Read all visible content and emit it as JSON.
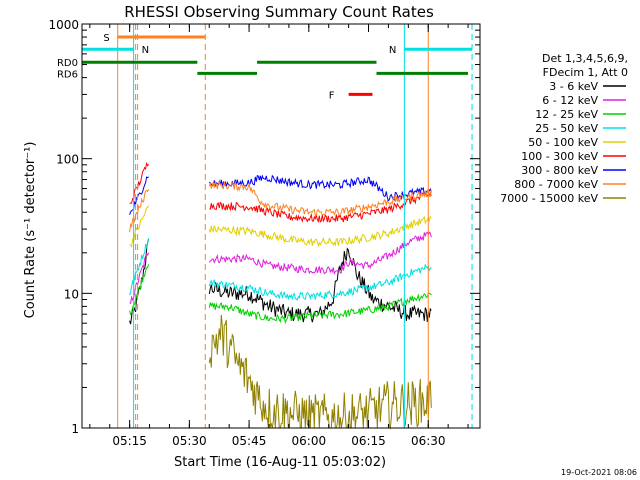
{
  "chart_data": {
    "type": "line",
    "title": "RHESSI Observing Summary Count Rates",
    "xlabel": "Start Time (16-Aug-11 05:03:02)",
    "ylabel": "Count Rate (s⁻¹ detector⁻¹)",
    "y_scale": "log",
    "ylim": [
      1,
      1000
    ],
    "xlim": [
      "05:03:02",
      "06:43:00"
    ],
    "x_ticks": [
      "05:15",
      "05:30",
      "05:45",
      "06:00",
      "06:15",
      "06:30"
    ],
    "y_ticks": [
      "1",
      "10",
      "100",
      "1000"
    ],
    "legend_header": [
      "Det 1,3,4,5,6,9,",
      "FDecim 1, Att 0"
    ],
    "legend_position": "right",
    "timestamp": "19-Oct-2021 08:06",
    "series": [
      {
        "name": "3 - 6 keV",
        "color": "#000000",
        "segments": [
          {
            "t": [
              "05:15:00",
              "05:16:00",
              "05:17:00",
              "05:18:00",
              "05:19:00",
              "05:20:00"
            ],
            "v": [
              6,
              7,
              9,
              12,
              18,
              25
            ]
          },
          {
            "t": [
              "05:35:00",
              "05:40:00",
              "05:45:00",
              "05:50:00",
              "05:55:00",
              "06:00:00",
              "06:03:00",
              "06:06:00",
              "06:08:00",
              "06:10:00",
              "06:12:00",
              "06:16:00",
              "06:20:00",
              "06:25:00",
              "06:31:00"
            ],
            "v": [
              11,
              10,
              10,
              8,
              7,
              7,
              7,
              9,
              16,
              22,
              14,
              9,
              8,
              7,
              7
            ]
          }
        ]
      },
      {
        "name": "6 - 12 keV",
        "color": "#e020e0",
        "segments": [
          {
            "t": [
              "05:15:00",
              "05:17:00",
              "05:19:00",
              "05:20:00"
            ],
            "v": [
              8,
              12,
              18,
              22
            ]
          },
          {
            "t": [
              "05:35:00",
              "05:45:00",
              "05:50:00",
              "06:00:00",
              "06:08:00",
              "06:10:00",
              "06:15:00",
              "06:20:00",
              "06:25:00",
              "06:31:00"
            ],
            "v": [
              18,
              18,
              16,
              15,
              15,
              17,
              16,
              19,
              24,
              28
            ]
          }
        ]
      },
      {
        "name": "12 - 25 keV",
        "color": "#00d000",
        "segments": [
          {
            "t": [
              "05:15:00",
              "05:17:00",
              "05:19:00",
              "05:20:00"
            ],
            "v": [
              7,
              10,
              15,
              18
            ]
          },
          {
            "t": [
              "05:35:00",
              "05:40:00",
              "05:45:00",
              "05:50:00",
              "05:55:00",
              "06:00:00",
              "06:08:00",
              "06:15:00",
              "06:20:00",
              "06:25:00",
              "06:31:00"
            ],
            "v": [
              8,
              8,
              7,
              6.5,
              6.5,
              6.8,
              7,
              7.5,
              8,
              9,
              10
            ]
          }
        ]
      },
      {
        "name": "25 - 50 keV",
        "color": "#00e0e0",
        "segments": [
          {
            "t": [
              "05:15:00",
              "05:17:00",
              "05:19:00",
              "05:20:00"
            ],
            "v": [
              10,
              15,
              22,
              26
            ]
          },
          {
            "t": [
              "05:35:00",
              "05:45:00",
              "05:50:00",
              "05:55:00",
              "06:00:00",
              "06:08:00",
              "06:15:00",
              "06:20:00",
              "06:25:00",
              "06:31:00"
            ],
            "v": [
              12,
              11,
              10,
              9.5,
              9.5,
              10,
              11,
              12,
              14,
              16
            ]
          }
        ]
      },
      {
        "name": "50 - 100 keV",
        "color": "#e0d000",
        "segments": [
          {
            "t": [
              "05:15:00",
              "05:17:00",
              "05:19:00",
              "05:20:00"
            ],
            "v": [
              22,
              30,
              40,
              46
            ]
          },
          {
            "t": [
              "05:35:00",
              "05:45:00",
              "05:50:00",
              "05:55:00",
              "06:00:00",
              "06:08:00",
              "06:15:00",
              "06:20:00",
              "06:25:00",
              "06:31:00"
            ],
            "v": [
              30,
              29,
              27,
              25,
              24,
              24,
              26,
              28,
              32,
              36
            ]
          }
        ]
      },
      {
        "name": "100 - 300 keV",
        "color": "#ff0000",
        "segments": [
          {
            "t": [
              "05:15:00",
              "05:17:00",
              "05:19:00",
              "05:20:00"
            ],
            "v": [
              45,
              62,
              85,
              100
            ]
          },
          {
            "t": [
              "05:35:00",
              "05:45:00",
              "05:50:00",
              "05:55:00",
              "06:00:00",
              "06:08:00",
              "06:15:00",
              "06:20:00",
              "06:25:00",
              "06:31:00"
            ],
            "v": [
              45,
              44,
              40,
              37,
              36,
              36,
              39,
              42,
              48,
              55
            ]
          }
        ]
      },
      {
        "name": "300 - 800 keV",
        "color": "#0000ff",
        "segments": [
          {
            "t": [
              "05:15:00",
              "05:17:00",
              "05:19:00",
              "05:20:00"
            ],
            "v": [
              38,
              50,
              68,
              80
            ]
          },
          {
            "t": [
              "05:35:00",
              "05:45:00",
              "05:48:00",
              "05:50:00",
              "05:55:00",
              "06:00:00",
              "06:08:00",
              "06:15:00",
              "06:20:00",
              "06:25:00",
              "06:31:00"
            ],
            "v": [
              65,
              66,
              72,
              72,
              67,
              64,
              64,
              70,
              52,
              55,
              58
            ]
          }
        ]
      },
      {
        "name": "800 - 7000 keV",
        "color": "#ff8020",
        "segments": [
          {
            "t": [
              "05:15:00",
              "05:17:00",
              "05:19:00",
              "05:20:00"
            ],
            "v": [
              30,
              40,
              55,
              65
            ]
          },
          {
            "t": [
              "05:35:00",
              "05:45:00",
              "05:48:00",
              "05:50:00",
              "05:55:00",
              "06:00:00",
              "06:08:00",
              "06:15:00",
              "06:20:00",
              "06:25:00",
              "06:31:00"
            ],
            "v": [
              64,
              62,
              48,
              45,
              42,
              40,
              40,
              44,
              48,
              52,
              56
            ]
          }
        ]
      },
      {
        "name": "7000 - 15000 keV",
        "color": "#908000",
        "segments": [
          {
            "t": [
              "05:35:00",
              "05:38:00",
              "05:40:00",
              "05:42:00",
              "05:44:00",
              "05:46:00",
              "05:48:00",
              "05:50:00",
              "05:55:00",
              "06:00:00",
              "06:08:00",
              "06:15:00",
              "06:20:00",
              "06:25:00",
              "06:31:00"
            ],
            "v": [
              4,
              5,
              4,
              3,
              2.5,
              2,
              1.6,
              1.4,
              1.3,
              1.2,
              1.2,
              1.3,
              1.5,
              1.5,
              1.6
            ]
          }
        ]
      }
    ],
    "annotations": {
      "flags": [
        {
          "label": "S",
          "color": "#ff8020",
          "start": "05:12:00",
          "end": "05:34:00",
          "level": 800
        },
        {
          "label": "N",
          "color": "#00e0e0",
          "start": "05:03:02",
          "end": "05:16:00",
          "level": 650,
          "label_at": "05:18:00"
        },
        {
          "label": "N",
          "color": "#00e0e0",
          "start": "06:24:00",
          "end": "06:41:00",
          "level": 650
        },
        {
          "label": "F",
          "color": "#ff0000",
          "start": "06:10:00",
          "end": "06:16:00",
          "level": 300,
          "label_at": "06:05:00"
        },
        {
          "label": "RD0",
          "color": "#008000",
          "level": 520
        },
        {
          "label": "RD6",
          "color": "#008000",
          "level": 430
        },
        {
          "label": "",
          "color": "#008000",
          "start": "05:03:02",
          "end": "05:32:00",
          "level": 520
        },
        {
          "label": "",
          "color": "#008000",
          "start": "05:32:00",
          "end": "05:47:00",
          "level": 430
        },
        {
          "label": "",
          "color": "#008000",
          "start": "05:47:00",
          "end": "06:17:00",
          "level": 520
        },
        {
          "label": "",
          "color": "#008000",
          "start": "06:17:00",
          "end": "06:40:00",
          "level": 430
        }
      ],
      "vlines": [
        {
          "t": "05:03:02",
          "color": "#00e0e0",
          "dash": false
        },
        {
          "t": "05:12:00",
          "color": "#ff8020",
          "dash": false
        },
        {
          "t": "05:16:00",
          "color": "#00e0e0",
          "dash": false
        },
        {
          "t": "05:16:30",
          "color": "#ff8020",
          "dash": true
        },
        {
          "t": "05:17:00",
          "color": "#ff8020",
          "dash": true
        },
        {
          "t": "05:34:00",
          "color": "#ff8020",
          "dash": true
        },
        {
          "t": "06:24:00",
          "color": "#00e0e0",
          "dash": false
        },
        {
          "t": "06:30:00",
          "color": "#ff8020",
          "dash": false
        },
        {
          "t": "06:41:00",
          "color": "#00e0e0",
          "dash": true
        }
      ]
    }
  }
}
